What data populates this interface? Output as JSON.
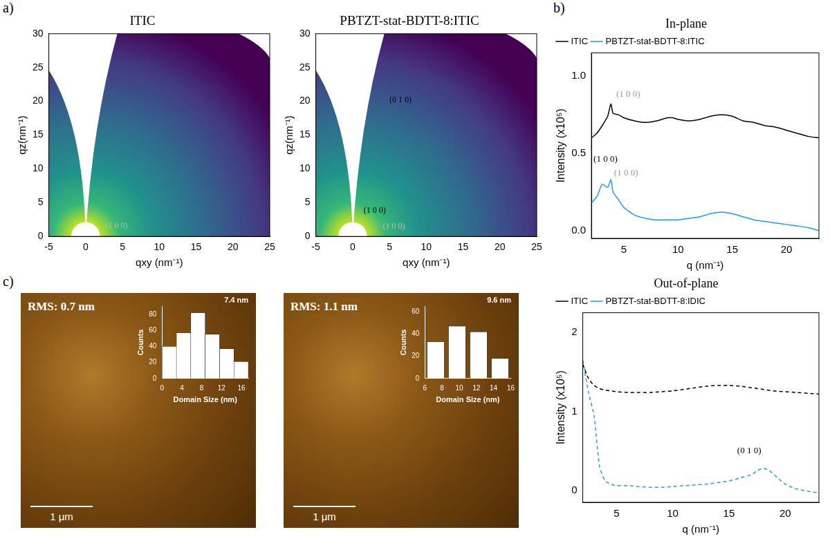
{
  "panel_labels": [
    "a)",
    "b)",
    "c)"
  ],
  "chart_data": [
    {
      "type": "map",
      "title": "ITIC",
      "x_label": "qxy (nm⁻¹)",
      "y_label": "qz(nm⁻¹)",
      "xlim": [
        -5,
        25
      ],
      "xticks": [
        -5,
        0,
        5,
        10,
        15,
        20,
        25
      ],
      "ylim": [
        0,
        30
      ],
      "yticks": [
        0,
        5,
        10,
        15,
        20,
        25,
        30
      ],
      "grid": false,
      "annotations": [
        {
          "text": "(1 0 0)",
          "x": 4.2,
          "y": 1.6,
          "color": "#bbbbbb"
        }
      ]
    },
    {
      "type": "map",
      "title": "PBTZT-stat-BDTT-8:ITIC",
      "x_label": "qxy (nm⁻¹)",
      "y_label": "qz(nm⁻¹)",
      "xlim": [
        -5,
        25
      ],
      "xticks": [
        -5,
        0,
        5,
        10,
        15,
        20,
        25
      ],
      "ylim": [
        0,
        30
      ],
      "yticks": [
        0,
        5,
        10,
        15,
        20,
        25,
        30
      ],
      "grid": false,
      "annotations": [
        {
          "text": "(0 1 0)",
          "x": 6.5,
          "y": 20.2,
          "color": "#000000"
        },
        {
          "text": "(1 0 0)",
          "x": 3.0,
          "y": 3.8,
          "color": "#000000"
        },
        {
          "text": "(1 0 0)",
          "x": 5.6,
          "y": 1.5,
          "color": "#bbbbbb"
        }
      ]
    },
    {
      "type": "line",
      "title": "In-plane",
      "x_label": "q (nm⁻¹)",
      "y_label": "Intensity (x10⁵)",
      "xlim": [
        2,
        23
      ],
      "xticks": [
        5,
        10,
        15,
        20
      ],
      "ylim": [
        -0.05,
        1.15
      ],
      "yticks": [
        {
          "value": 0,
          "label": "0.0"
        },
        0.5,
        {
          "value": 1,
          "label": "1.0"
        }
      ],
      "grid": false,
      "legend": "top",
      "x": [
        2,
        2.5,
        3,
        3.5,
        3.8,
        4,
        4.5,
        5,
        6,
        7,
        8,
        9,
        9.5,
        10,
        11,
        12,
        13,
        14,
        15,
        16,
        17,
        18,
        19,
        20,
        21,
        22,
        23
      ],
      "series": [
        {
          "name": "ITIC",
          "color": "#000000",
          "line_style": "solid",
          "values": [
            0.6,
            0.63,
            0.68,
            0.74,
            0.82,
            0.76,
            0.75,
            0.73,
            0.71,
            0.7,
            0.71,
            0.73,
            0.73,
            0.72,
            0.71,
            0.72,
            0.74,
            0.75,
            0.74,
            0.71,
            0.7,
            0.68,
            0.67,
            0.65,
            0.63,
            0.61,
            0.6
          ]
        },
        {
          "name": "PBTZT-stat-BDTT-8:ITIC",
          "color": "#1e9bf0",
          "line_style": "solid",
          "values": [
            0.18,
            0.22,
            0.3,
            0.28,
            0.33,
            0.25,
            0.2,
            0.15,
            0.1,
            0.08,
            0.07,
            0.07,
            0.07,
            0.07,
            0.08,
            0.09,
            0.11,
            0.12,
            0.11,
            0.09,
            0.07,
            0.06,
            0.05,
            0.04,
            0.03,
            0.02,
            0.0
          ]
        }
      ],
      "annotations": [
        {
          "text": "(1 0 0)",
          "x": 5.4,
          "y": 0.88,
          "color": "#999999"
        },
        {
          "text": "(1 0 0)",
          "x": 3.3,
          "y": 0.46,
          "color": "#000000"
        },
        {
          "text": "(1 0 0)",
          "x": 5.2,
          "y": 0.37,
          "color": "#999999"
        }
      ]
    },
    {
      "type": "line",
      "title": "Out-of-plane",
      "x_label": "q (nm⁻¹)",
      "y_label": "Intensity (x10⁵)",
      "xlim": [
        2,
        23
      ],
      "xticks": [
        5,
        10,
        15,
        20
      ],
      "ylim": [
        -0.15,
        2.25
      ],
      "yticks": [
        0,
        1,
        2
      ],
      "grid": false,
      "legend": "top",
      "x": [
        2,
        2.5,
        3,
        3.5,
        4,
        4.5,
        5,
        6,
        7,
        8,
        9,
        10,
        11,
        12,
        13,
        14,
        15,
        16,
        17,
        17.5,
        18,
        18.5,
        19,
        20,
        21,
        22,
        23
      ],
      "series": [
        {
          "name": "ITIC",
          "color": "#000000",
          "line_style": "dashed",
          "values": [
            1.6,
            1.42,
            1.33,
            1.29,
            1.27,
            1.26,
            1.25,
            1.24,
            1.24,
            1.24,
            1.25,
            1.26,
            1.28,
            1.3,
            1.32,
            1.33,
            1.33,
            1.32,
            1.3,
            1.29,
            1.28,
            1.27,
            1.26,
            1.25,
            1.24,
            1.23,
            1.22
          ]
        },
        {
          "name": "PBTZT-stat-BDTT-8:IDIC",
          "color": "#1e9bf0",
          "line_style": "dashed",
          "values": [
            1.65,
            1.25,
            0.95,
            0.3,
            0.12,
            0.08,
            0.06,
            0.06,
            0.05,
            0.04,
            0.04,
            0.05,
            0.06,
            0.07,
            0.08,
            0.1,
            0.12,
            0.16,
            0.2,
            0.25,
            0.28,
            0.26,
            0.2,
            0.08,
            0.02,
            -0.01,
            -0.03
          ]
        }
      ],
      "annotations": [
        {
          "text": "(0 1 0)",
          "x": 16.8,
          "y": 0.5,
          "color": "#000000"
        }
      ]
    },
    {
      "type": "histogram",
      "title": "7.4 nm",
      "x_label": "Domain Size (nm)",
      "y_label": "Counts",
      "bins": [
        0,
        2.9,
        5.8,
        8.7,
        11.6,
        14.5,
        17.4
      ],
      "values": [
        40,
        57,
        82,
        55,
        37,
        21
      ],
      "color": "#ffffff",
      "xlim": [
        0,
        17.4
      ],
      "xticks": [
        0,
        4,
        8,
        12,
        16
      ],
      "ylim": [
        0,
        90
      ],
      "yticks": [
        0,
        20,
        40,
        60,
        80
      ],
      "grid": false,
      "annotations": [
        {
          "text": "RMS: 0.7 nm"
        }
      ],
      "scale_bar": "1 μm"
    },
    {
      "type": "histogram",
      "title": "9.6 nm",
      "x_label": "Domain Size (nm)",
      "y_label": "Counts",
      "bins": [
        6,
        8.5,
        11,
        13.5,
        16
      ],
      "values": [
        33,
        47,
        42,
        18
      ],
      "color": "#ffffff",
      "xlim": [
        6,
        16
      ],
      "xticks": [
        6,
        8,
        10,
        12,
        14,
        16
      ],
      "ylim": [
        0,
        65
      ],
      "yticks": [
        0,
        20,
        40,
        60
      ],
      "grid": false,
      "annotations": [
        {
          "text": "RMS: 1.1 nm"
        }
      ],
      "scale_bar": "1 μm"
    }
  ]
}
